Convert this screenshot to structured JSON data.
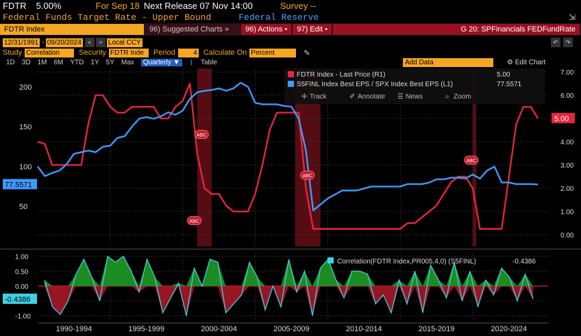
{
  "header": {
    "ticker": "FDTR",
    "value": "5.00%",
    "for_label": "For Sep 18",
    "next_release": "Next Release 07 Nov 14:00",
    "survey": "Survey --",
    "description": "Federal Funds Target Rate - Upper Bound",
    "source": "Federal Reserve",
    "popout_icon": "popout-icon"
  },
  "toolbar": {
    "security": "FDTR Index",
    "suggested_charts": "96) Suggested Charts »",
    "actions": "96) Actions •",
    "edit": "97) Edit •",
    "chart_title": "G 20: SPFinancials FEDFundRate",
    "undo_icon": "undo-icon",
    "redo_icon": "redo-icon"
  },
  "range": {
    "start": "12/31/1991",
    "end": "09/20/2024",
    "currency": "Local CCY"
  },
  "study": {
    "study_label": "Study",
    "study_value": "Correlation",
    "security_label": "Security",
    "security_value": "FDTR Inde",
    "period_label": "Period",
    "period_value": "4",
    "calc_label": "Calculate On",
    "calc_value": "Percent"
  },
  "timebar": {
    "buttons": [
      "1D",
      "3D",
      "1M",
      "6M",
      "YTD",
      "1Y",
      "5Y",
      "Max"
    ],
    "frequency": "Quarterly ▼",
    "table": "Table",
    "add_data": "Add Data",
    "edit_chart": "Edit Chart"
  },
  "colors": {
    "red": "#e8243c",
    "blue": "#3d9bff",
    "green": "#1f9a26",
    "teal": "#3fd1e6",
    "amber": "#f5a623"
  },
  "chart_data": [
    {
      "type": "line",
      "x": [
        1990.0,
        1990.5,
        1991.0,
        1991.5,
        1992.0,
        1992.5,
        1993.0,
        1993.5,
        1994.0,
        1994.5,
        1995.0,
        1995.5,
        1996.0,
        1996.5,
        1997.0,
        1997.5,
        1998.0,
        1998.5,
        1999.0,
        1999.5,
        2000.0,
        2000.5,
        2001.0,
        2001.5,
        2002.0,
        2002.5,
        2003.0,
        2003.5,
        2004.0,
        2004.5,
        2005.0,
        2005.5,
        2006.0,
        2006.5,
        2007.0,
        2007.5,
        2008.0,
        2008.5,
        2009.0,
        2010.0,
        2011.0,
        2012.0,
        2013.0,
        2014.0,
        2015.0,
        2015.5,
        2016.0,
        2016.5,
        2017.0,
        2017.5,
        2018.0,
        2018.5,
        2019.0,
        2019.5,
        2020.0,
        2020.5,
        2021.0,
        2021.5,
        2022.0,
        2022.5,
        2023.0,
        2023.5,
        2024.0,
        2024.5
      ],
      "series": [
        {
          "name": "FDTR Index - Last Price (R1)",
          "axis": "right",
          "values": [
            4.0,
            3.9,
            3.0,
            3.0,
            3.0,
            3.0,
            3.0,
            4.8,
            6.0,
            6.0,
            5.5,
            5.25,
            5.25,
            5.5,
            5.5,
            5.5,
            5.5,
            5.0,
            5.0,
            5.5,
            5.75,
            6.5,
            3.5,
            2.0,
            1.75,
            1.75,
            1.25,
            1.0,
            1.0,
            1.0,
            1.75,
            3.0,
            4.5,
            5.25,
            5.25,
            5.25,
            5.25,
            2.0,
            0.25,
            0.25,
            0.25,
            0.25,
            0.25,
            0.25,
            0.25,
            0.5,
            0.5,
            0.75,
            1.0,
            1.25,
            1.75,
            2.25,
            2.5,
            2.5,
            2.0,
            0.25,
            0.25,
            0.25,
            0.25,
            2.5,
            4.75,
            5.5,
            5.5,
            5.0
          ]
        },
        {
          "name": "S5FINL Index Best EPS / SPX Index Best EPS (L1)",
          "axis": "left",
          "values": [
            100,
            88,
            92,
            95,
            103,
            116,
            118,
            120,
            118,
            125,
            126,
            136,
            138,
            150,
            160,
            162,
            160,
            163,
            168,
            165,
            170,
            185,
            193,
            195,
            196,
            198,
            195,
            198,
            205,
            200,
            180,
            178,
            178,
            178,
            176,
            175,
            160,
            120,
            45,
            60,
            70,
            70,
            75,
            75,
            75,
            78,
            78,
            78,
            80,
            84,
            84,
            86,
            86,
            85,
            90,
            85,
            95,
            100,
            80,
            80,
            78,
            78,
            78,
            77.5571
          ]
        }
      ],
      "left_axis": {
        "ticks": [
          50,
          100,
          150,
          200
        ],
        "current_value": "77.5571"
      },
      "right_axis": {
        "ticks": [
          "0.00",
          "1.00",
          "2.00",
          "3.00",
          "4.00",
          "5.00",
          "6.00",
          "7.00"
        ],
        "current_value": "5.00"
      },
      "legend": [
        {
          "label": "FDTR Index - Last Price (R1)",
          "value": "5.00",
          "color": "#e8243c"
        },
        {
          "label": "S5FINL Index Best EPS / SPX Index Best EPS (L1)",
          "value": "77.5571",
          "color": "#3d9bff"
        }
      ],
      "legend_menu": [
        "Track",
        "Annotate",
        "News",
        "Zoom"
      ],
      "recession_shading": [
        [
          2001.0,
          2002.0
        ],
        [
          2007.75,
          2009.5
        ],
        [
          2020.0,
          2020.25
        ]
      ],
      "event_markers": [
        "ABC",
        "ABC",
        "ABC",
        "ABC"
      ]
    },
    {
      "type": "area",
      "x_tick_labels": [
        "1990-1994",
        "1995-1999",
        "2000-2004",
        "2005-2009",
        "2010-2014",
        "2015-2019",
        "2020-2024"
      ],
      "series": [
        {
          "name": "Correlation(FDTR Index,PR005,4,0) (S5FINL)",
          "values": [
            0.2,
            -0.7,
            -0.95,
            -0.5,
            0.4,
            0.9,
            0.3,
            -0.5,
            1.0,
            0.8,
            1.0,
            0.5,
            -0.2,
            0.9,
            0.3,
            -0.9,
            -0.4,
            0.1,
            -1.0,
            0.6,
            0.0,
            0.9,
            0.8,
            -0.9,
            -0.6,
            -0.3,
            0.8,
            0.3,
            -0.8,
            0.0,
            -0.7,
            0.9,
            -0.2,
            0.5,
            -1.0,
            0.6,
            0.9,
            0.2,
            -0.4,
            0.5,
            0.5,
            0.4,
            -0.6,
            -0.3,
            -0.9,
            0.2,
            -0.6,
            0.5,
            -0.9,
            0.7,
            0.2,
            -0.4,
            0.8,
            -0.5,
            0.5,
            -0.7,
            0.2,
            -0.3,
            0.6,
            0.3,
            -0.5,
            0.4,
            -0.4386
          ]
        }
      ],
      "y_ticks": [
        "1.00",
        "0.50",
        "0.00",
        "-0.50",
        "-1.00"
      ],
      "current_value": "-0.4386",
      "legend": [
        {
          "label": "Correlation(FDTR Index,PR005,4,0) (S5FINL)",
          "value": "-0.4386",
          "color": "#3fd1e6"
        }
      ]
    }
  ]
}
